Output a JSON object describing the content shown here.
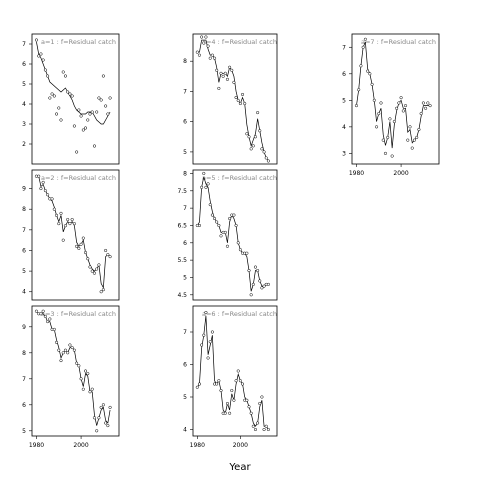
{
  "chart_data": {
    "type": "line",
    "xlabel": "Year",
    "panels": [
      {
        "title": "a=1 : f=Residual catch",
        "xlim": [
          1978,
          2017
        ],
        "ylim": [
          1,
          7.5
        ],
        "xticks": [],
        "yticks": [
          2,
          3,
          4,
          5,
          6,
          7
        ],
        "years": [
          1980,
          1981,
          1982,
          1983,
          1984,
          1985,
          1986,
          1987,
          1988,
          1989,
          1990,
          1991,
          1992,
          1993,
          1994,
          1995,
          1996,
          1997,
          1998,
          1999,
          2000,
          2001,
          2002,
          2003,
          2004,
          2005,
          2006,
          2007,
          2008,
          2009,
          2010,
          2011,
          2012,
          2013
        ],
        "points": [
          7.2,
          6.4,
          6.5,
          6.2,
          5.7,
          5.4,
          4.3,
          4.5,
          4.4,
          3.5,
          3.8,
          3.2,
          5.6,
          5.4,
          4.6,
          4.5,
          4.4,
          2.9,
          1.6,
          3.7,
          3.4,
          2.7,
          2.8,
          3.2,
          3.5,
          3.6,
          1.9,
          3.6,
          4.3,
          4.2,
          5.4,
          3.9,
          3.5,
          4.3
        ],
        "fit": [
          7.1,
          6.5,
          6.3,
          6.0,
          5.7,
          5.4,
          5.1,
          5.0,
          4.9,
          4.8,
          4.7,
          4.6,
          4.7,
          4.8,
          4.6,
          4.4,
          4.2,
          3.9,
          3.7,
          3.6,
          3.5,
          3.5,
          3.5,
          3.6,
          3.6,
          3.6,
          3.4,
          3.2,
          3.1,
          3.0,
          3.0,
          3.2,
          3.4,
          3.6
        ]
      },
      {
        "title": "a=4 : f=Residual catch",
        "xlim": [
          1978,
          2017
        ],
        "ylim": [
          4.6,
          8.9
        ],
        "xticks": [],
        "yticks": [
          5,
          6,
          7,
          8
        ],
        "years": [
          1980,
          1981,
          1982,
          1983,
          1984,
          1985,
          1986,
          1987,
          1988,
          1989,
          1990,
          1991,
          1992,
          1993,
          1994,
          1995,
          1996,
          1997,
          1998,
          1999,
          2000,
          2001,
          2002,
          2003,
          2004,
          2005,
          2006,
          2007,
          2008,
          2009,
          2010,
          2011,
          2012,
          2013
        ],
        "points": [
          8.3,
          8.2,
          8.8,
          8.6,
          8.8,
          8.5,
          8.1,
          8.2,
          8.1,
          7.7,
          7.1,
          7.6,
          7.5,
          7.6,
          7.4,
          7.8,
          7.7,
          7.3,
          6.8,
          6.7,
          6.6,
          6.9,
          6.6,
          5.6,
          5.5,
          5.1,
          5.2,
          5.5,
          6.3,
          5.7,
          5.1,
          5.0,
          4.8,
          4.7
        ],
        "fit": [
          8.3,
          8.3,
          8.7,
          8.7,
          8.7,
          8.4,
          8.2,
          8.2,
          8.1,
          7.8,
          7.3,
          7.6,
          7.6,
          7.6,
          7.5,
          7.8,
          7.7,
          7.5,
          7.0,
          6.7,
          6.6,
          6.8,
          6.6,
          5.9,
          5.5,
          5.2,
          5.4,
          5.6,
          6.1,
          5.7,
          5.3,
          5.0,
          4.8,
          4.7
        ]
      },
      {
        "title": "a=7 : f=Residual catch",
        "xlim": [
          1978,
          2017
        ],
        "ylim": [
          2.6,
          7.5
        ],
        "xticks": [
          1980,
          2000
        ],
        "yticks": [
          3,
          4,
          5,
          6,
          7
        ],
        "years": [
          1980,
          1981,
          1982,
          1983,
          1984,
          1985,
          1986,
          1987,
          1988,
          1989,
          1990,
          1991,
          1992,
          1993,
          1994,
          1995,
          1996,
          1997,
          1998,
          1999,
          2000,
          2001,
          2002,
          2003,
          2004,
          2005,
          2006,
          2007,
          2008,
          2009,
          2010,
          2011,
          2012,
          2013
        ],
        "points": [
          4.8,
          5.4,
          6.3,
          7.0,
          7.3,
          6.1,
          6.0,
          5.6,
          5.0,
          4.0,
          4.5,
          4.9,
          3.5,
          3.0,
          3.6,
          4.3,
          2.9,
          4.2,
          4.7,
          4.9,
          5.1,
          4.6,
          4.8,
          3.5,
          4.0,
          3.2,
          3.5,
          3.6,
          3.9,
          4.5,
          4.9,
          4.7,
          4.9,
          4.8
        ],
        "fit": [
          4.8,
          5.4,
          6.3,
          7.0,
          7.2,
          6.2,
          6.0,
          5.6,
          5.0,
          4.2,
          4.5,
          4.7,
          3.7,
          3.3,
          3.6,
          4.2,
          3.2,
          4.1,
          4.6,
          4.9,
          5.0,
          4.7,
          4.7,
          3.8,
          3.9,
          3.4,
          3.5,
          3.6,
          3.9,
          4.4,
          4.8,
          4.8,
          4.8,
          4.8
        ]
      },
      {
        "title": "a=2 : f=Residual catch",
        "xlim": [
          1978,
          2017
        ],
        "ylim": [
          3.6,
          9.9
        ],
        "xticks": [],
        "yticks": [
          4,
          5,
          6,
          7,
          8,
          9
        ],
        "years": [
          1980,
          1981,
          1982,
          1983,
          1984,
          1985,
          1986,
          1987,
          1988,
          1989,
          1990,
          1991,
          1992,
          1993,
          1994,
          1995,
          1996,
          1997,
          1998,
          1999,
          2000,
          2001,
          2002,
          2003,
          2004,
          2005,
          2006,
          2007,
          2008,
          2009,
          2010,
          2011,
          2012,
          2013
        ],
        "points": [
          9.6,
          9.6,
          9.0,
          9.3,
          8.9,
          8.7,
          8.5,
          8.5,
          8.0,
          7.7,
          7.3,
          7.8,
          6.5,
          7.2,
          7.5,
          7.3,
          7.5,
          7.3,
          6.2,
          6.1,
          6.3,
          6.6,
          5.9,
          5.6,
          5.2,
          5.0,
          4.9,
          5.1,
          5.3,
          4.0,
          4.1,
          6.0,
          5.8,
          5.7
        ],
        "fit": [
          9.6,
          9.6,
          9.1,
          9.2,
          8.9,
          8.7,
          8.5,
          8.4,
          8.1,
          7.7,
          7.4,
          7.7,
          6.9,
          7.2,
          7.4,
          7.3,
          7.4,
          7.2,
          6.4,
          6.2,
          6.3,
          6.5,
          5.9,
          5.6,
          5.3,
          5.1,
          5.0,
          5.1,
          5.3,
          4.4,
          4.2,
          5.7,
          5.8,
          5.7
        ]
      },
      {
        "title": "a=5 : f=Residual catch",
        "xlim": [
          1978,
          2017
        ],
        "ylim": [
          4.35,
          8.1
        ],
        "xticks": [],
        "yticks": [
          4.5,
          5.0,
          5.5,
          6.0,
          6.5,
          7.0,
          7.5,
          8.0
        ],
        "years": [
          1980,
          1981,
          1982,
          1983,
          1984,
          1985,
          1986,
          1987,
          1988,
          1989,
          1990,
          1991,
          1992,
          1993,
          1994,
          1995,
          1996,
          1997,
          1998,
          1999,
          2000,
          2001,
          2002,
          2003,
          2004,
          2005,
          2006,
          2007,
          2008,
          2009,
          2010,
          2011,
          2012,
          2013
        ],
        "points": [
          6.5,
          6.5,
          7.6,
          8.0,
          7.6,
          7.7,
          7.1,
          6.8,
          6.7,
          6.6,
          6.5,
          6.2,
          6.3,
          6.3,
          5.9,
          6.7,
          6.8,
          6.8,
          6.5,
          6.0,
          5.8,
          5.7,
          5.7,
          5.7,
          5.2,
          4.5,
          4.8,
          5.3,
          5.2,
          4.9,
          4.7,
          4.75,
          4.8,
          4.8
        ],
        "fit": [
          6.5,
          6.6,
          7.6,
          7.9,
          7.7,
          7.6,
          7.2,
          6.9,
          6.7,
          6.6,
          6.5,
          6.3,
          6.3,
          6.3,
          6.0,
          6.6,
          6.8,
          6.7,
          6.5,
          6.0,
          5.8,
          5.7,
          5.7,
          5.6,
          5.2,
          4.6,
          4.8,
          5.2,
          5.2,
          4.9,
          4.75,
          4.75,
          4.8,
          4.8
        ]
      },
      {
        "title": "a=3 : f=Residual catch",
        "xlim": [
          1978,
          2017
        ],
        "ylim": [
          4.8,
          9.8
        ],
        "xticks": [
          1980,
          2000
        ],
        "yticks": [
          5,
          6,
          7,
          8,
          9
        ],
        "years": [
          1980,
          1981,
          1982,
          1983,
          1984,
          1985,
          1986,
          1987,
          1988,
          1989,
          1990,
          1991,
          1992,
          1993,
          1994,
          1995,
          1996,
          1997,
          1998,
          1999,
          2000,
          2001,
          2002,
          2003,
          2004,
          2005,
          2006,
          2007,
          2008,
          2009,
          2010,
          2011,
          2012,
          2013
        ],
        "points": [
          9.6,
          9.5,
          9.5,
          9.6,
          9.4,
          9.2,
          9.3,
          8.9,
          8.9,
          8.4,
          8.1,
          7.7,
          8.0,
          8.1,
          8.0,
          8.3,
          8.2,
          8.1,
          7.6,
          7.5,
          7.0,
          6.6,
          7.3,
          7.2,
          6.5,
          6.6,
          5.5,
          5.0,
          5.5,
          5.9,
          6.0,
          5.3,
          5.2,
          5.9
        ],
        "fit": [
          9.6,
          9.5,
          9.5,
          9.5,
          9.4,
          9.2,
          9.2,
          8.9,
          8.9,
          8.5,
          8.2,
          7.8,
          8.0,
          8.1,
          8.0,
          8.2,
          8.2,
          8.1,
          7.6,
          7.5,
          7.0,
          6.7,
          7.2,
          7.1,
          6.5,
          6.5,
          5.6,
          5.2,
          5.5,
          5.8,
          5.9,
          5.4,
          5.3,
          5.8
        ]
      },
      {
        "title": "a=6 : f=Residual catch",
        "xlim": [
          1978,
          2017
        ],
        "ylim": [
          3.8,
          7.8
        ],
        "xticks": [
          1980,
          2000
        ],
        "yticks": [
          4,
          5,
          6,
          7
        ],
        "years": [
          1980,
          1981,
          1982,
          1983,
          1984,
          1985,
          1986,
          1987,
          1988,
          1989,
          1990,
          1991,
          1992,
          1993,
          1994,
          1995,
          1996,
          1997,
          1998,
          1999,
          2000,
          2001,
          2002,
          2003,
          2004,
          2005,
          2006,
          2007,
          2008,
          2009,
          2010,
          2011,
          2012,
          2013
        ],
        "points": [
          5.3,
          5.4,
          6.6,
          6.9,
          7.6,
          6.2,
          6.7,
          7.0,
          5.4,
          5.4,
          5.5,
          5.2,
          4.5,
          4.5,
          4.8,
          4.5,
          5.2,
          4.9,
          5.5,
          5.8,
          5.5,
          5.4,
          4.9,
          4.9,
          4.7,
          4.5,
          4.1,
          4.0,
          4.2,
          4.8,
          5.0,
          4.0,
          4.1,
          4.0
        ],
        "fit": [
          5.3,
          5.4,
          6.5,
          6.9,
          7.5,
          6.3,
          6.6,
          6.9,
          5.5,
          5.4,
          5.5,
          5.2,
          4.6,
          4.5,
          4.8,
          4.6,
          5.1,
          4.9,
          5.4,
          5.7,
          5.5,
          5.4,
          5.0,
          4.9,
          4.7,
          4.5,
          4.2,
          4.1,
          4.2,
          4.7,
          4.9,
          4.1,
          4.1,
          4.0
        ]
      }
    ]
  }
}
